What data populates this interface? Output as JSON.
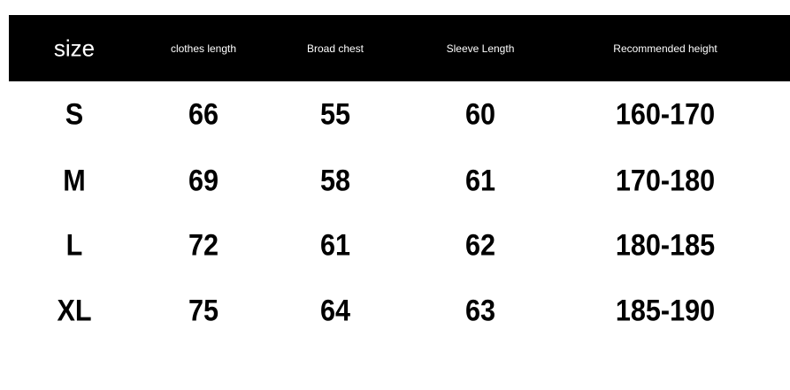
{
  "table": {
    "header": [
      "size",
      "clothes length",
      "Broad chest",
      "Sleeve Length",
      "Recommended height"
    ],
    "rows": [
      [
        "S",
        "66",
        "55",
        "60",
        "160-170"
      ],
      [
        "M",
        "69",
        "58",
        "61",
        "170-180"
      ],
      [
        "L",
        "72",
        "61",
        "62",
        "180-185"
      ],
      [
        "XL",
        "75",
        "64",
        "63",
        "185-190"
      ]
    ]
  }
}
